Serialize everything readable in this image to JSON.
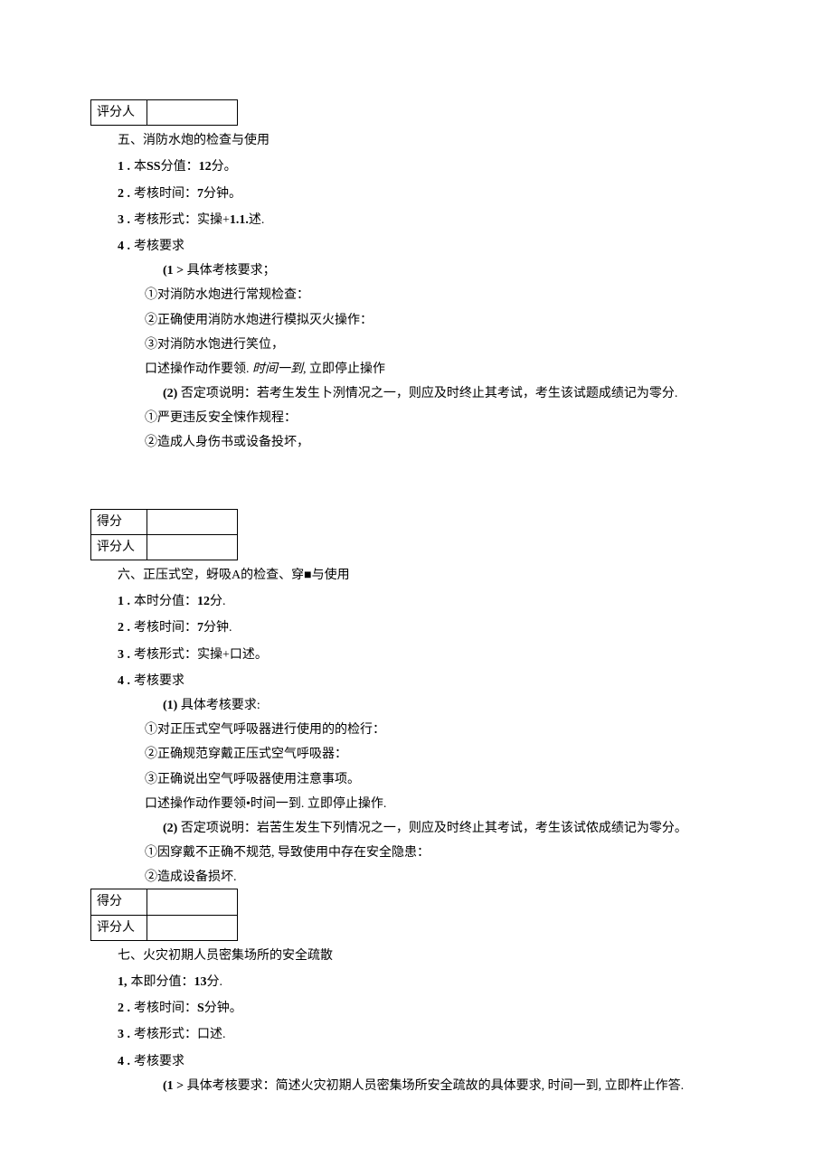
{
  "table_labels": {
    "score": "得分",
    "grader": "评分人"
  },
  "section5": {
    "title": "五、消防水炮的检查与使用",
    "n1_pre": "1 .",
    "n1_mid": "本",
    "n1_bold": "SS",
    "n1_post": "分值：",
    "n1_val": "12",
    "n1_tail": "分。",
    "n2_pre": "2 .",
    "n2_text": "考核时间：",
    "n2_val": "7",
    "n2_tail": "分钟。",
    "n3_pre": "3 .",
    "n3_text": "考核形式：实操+",
    "n3_bold": "1.1.",
    "n3_tail": "述.",
    "n4_pre": "4 .",
    "n4_text": "考核要求",
    "req1_label": "(1 >",
    "req1_text": " 具体考核要求；",
    "c1": "①对消防水炮进行常规检查：",
    "c2": "②正确使用消防水炮进行模拟灭火操作：",
    "c3": "③对消防水饱进行笑位，",
    "desc1_a": "口述操作动作要领. ",
    "desc1_b": "时间一到,",
    "desc1_c": " 立即停止操作",
    "req2_label": "(2)",
    "req2_text": "  否定项说明：若考生发生卜洌情况之一，则应及时终止其考试，考生该试题成绩记为零分.",
    "c4": "①严更违反安全悚作规程：",
    "c5": "②造成人身伤书或设备投坏，"
  },
  "section6": {
    "title": "六、正压式空，蚜吸A的检查、穿■与使用",
    "n1_pre": "1 .",
    "n1_text": "本时分值：",
    "n1_val": "12",
    "n1_tail": "分.",
    "n2_pre": "2 .",
    "n2_text": "考核时间：",
    "n2_val": "7",
    "n2_tail": "分钟.",
    "n3_pre": "3 .",
    "n3_text": "考核形式：实操+口述。",
    "n4_pre": "4 .",
    "n4_text": "考核要求",
    "req1_label": "(1)",
    "req1_text": "  具体考核要求:",
    "c1": "①对正压式空气呼吸器进行使用的的检行：",
    "c2": "②正确规范穿戴正压式空气呼吸器：",
    "c3": "③正确说出空气呼吸器使用注意事项。",
    "desc1": "口述操作动作要领•时间一到. 立即停止操作.",
    "req2_label": "(2)",
    "req2_text": "  否定项说明：岩苦生发生下列情况之一，则应及时终止其考试，考生该试侬成绩记为零分。",
    "c4": "①因穿戴不正确不规范, 导致使用中存在安全隐患：",
    "c5": "②造成设备损坏."
  },
  "section7": {
    "title": "七、火灾初期人员密集场所的安全疏散",
    "n1_pre": "1,",
    "n1_text": "本即分值：",
    "n1_val": "13",
    "n1_tail": "分.",
    "n2_pre": "2 .",
    "n2_text": "考核时间：",
    "n2_val": "S",
    "n2_tail": "分钟。",
    "n3_pre": "3 .",
    "n3_text": "考核形式：口述.",
    "n4_pre": "4 .",
    "n4_text": "考核要求",
    "req1_label": "(1 >",
    "req1_text": " 具体考核要求：简述火灾初期人员密集场所安全疏故的具体要求, 时间一到, 立即杵止作答."
  }
}
